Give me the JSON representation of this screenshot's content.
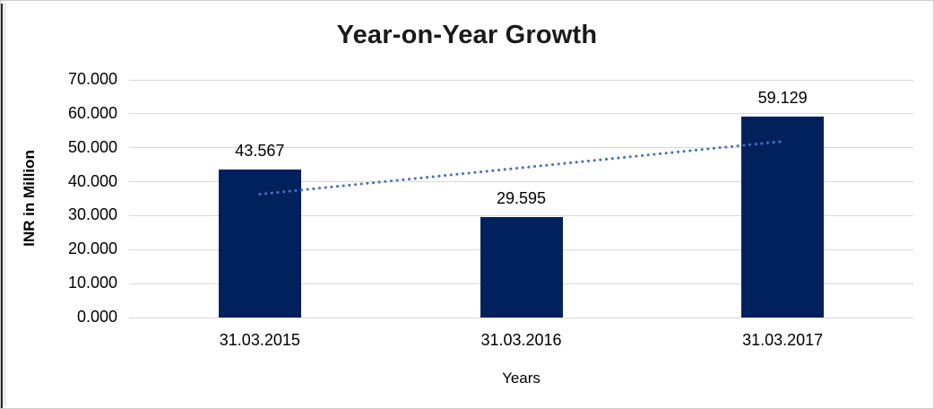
{
  "window": {
    "title": "Year-on-Year Growth"
  },
  "colors": {
    "bar": "#01215d",
    "trendline": "#4472c4",
    "gridline": "#d9d9d9",
    "axis_line": "#d9d9d9",
    "title_text": "#1a1a1a",
    "label_text": "#000000",
    "frame_border": "#cbcbcb",
    "left_edge": "#262626"
  },
  "chart_data": {
    "type": "bar",
    "title": "Year-on-Year Growth",
    "categories": [
      "31.03.2015",
      "31.03.2016",
      "31.03.2017"
    ],
    "values": [
      43.567,
      29.595,
      59.129
    ],
    "data_labels": [
      "43.567",
      "29.595",
      "59.129"
    ],
    "xlabel": "Years",
    "ylabel": "INR in Million",
    "ylim": [
      0,
      70
    ],
    "ytick_step": 10,
    "ytick_labels": [
      "0.000",
      "10.000",
      "20.000",
      "30.000",
      "40.000",
      "50.000",
      "60.000",
      "70.000"
    ],
    "grid": true,
    "legend_position": "none",
    "trendline": {
      "type": "linear",
      "style": "dotted",
      "start_value": 36.316,
      "end_value": 51.878
    }
  }
}
